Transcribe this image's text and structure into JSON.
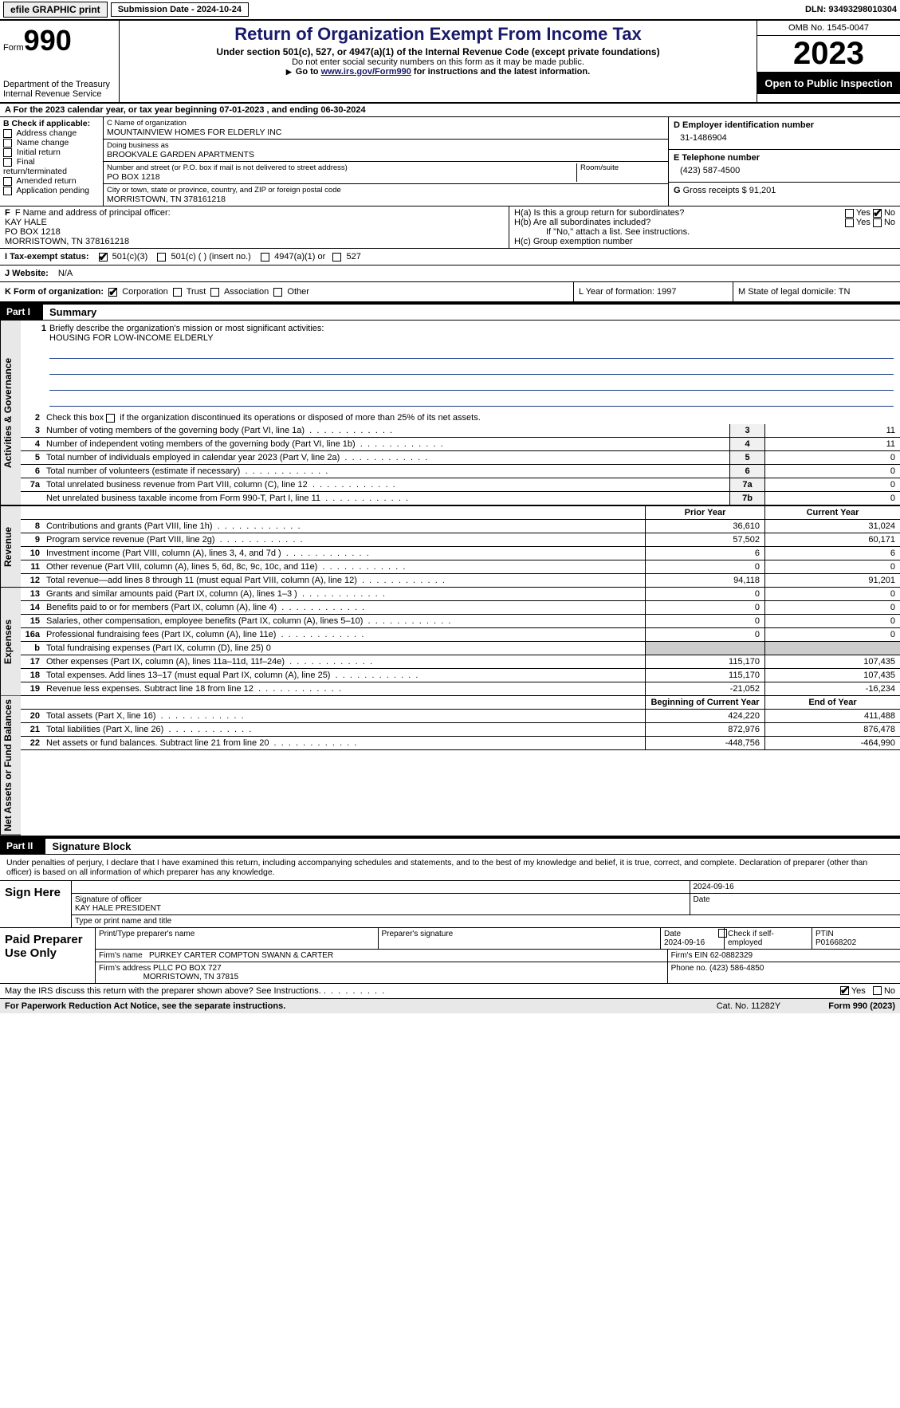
{
  "topbar": {
    "efile": "efile GRAPHIC print",
    "submission_label": "Submission Date - 2024-10-24",
    "dln_label": "DLN: 93493298010304"
  },
  "header": {
    "form_word": "Form",
    "form_num": "990",
    "dept": "Department of the Treasury",
    "irs": "Internal Revenue Service",
    "title": "Return of Organization Exempt From Income Tax",
    "sub": "Under section 501(c), 527, or 4947(a)(1) of the Internal Revenue Code (except private foundations)",
    "note1": "Do not enter social security numbers on this form as it may be made public.",
    "note2_pre": "Go to ",
    "note2_link": "www.irs.gov/Form990",
    "note2_post": " for instructions and the latest information.",
    "omb": "OMB No. 1545-0047",
    "year": "2023",
    "open": "Open to Public Inspection"
  },
  "line_a": "For the 2023 calendar year, or tax year beginning 07-01-2023    , and ending 06-30-2024",
  "box_b": {
    "title": "B Check if applicable:",
    "items": [
      "Address change",
      "Name change",
      "Initial return",
      "Final return/terminated",
      "Amended return",
      "Application pending"
    ]
  },
  "box_c": {
    "name_label": "C Name of organization",
    "name": "MOUNTAINVIEW HOMES FOR ELDERLY INC",
    "dba_label": "Doing business as",
    "dba": "BROOKVALE GARDEN APARTMENTS",
    "street_label": "Number and street (or P.O. box if mail is not delivered to street address)",
    "street": "PO BOX 1218",
    "room_label": "Room/suite",
    "city_label": "City or town, state or province, country, and ZIP or foreign postal code",
    "city": "MORRISTOWN, TN  378161218"
  },
  "box_d": {
    "label": "D Employer identification number",
    "value": "31-1486904"
  },
  "box_e": {
    "label": "E Telephone number",
    "value": "(423) 587-4500"
  },
  "box_g": {
    "label": "G",
    "text": "Gross receipts $ 91,201"
  },
  "box_f": {
    "label": "F  Name and address of principal officer:",
    "l1": "KAY HALE",
    "l2": "PO BOX 1218",
    "l3": "MORRISTOWN, TN  378161218"
  },
  "box_h": {
    "a": "H(a)  Is this a group return for subordinates?",
    "b": "H(b)  Are all subordinates included?",
    "b_note": "If \"No,\" attach a list. See instructions.",
    "c": "H(c)  Group exemption number",
    "yes": "Yes",
    "no": "No"
  },
  "row_i": {
    "label": "I   Tax-exempt status:",
    "o1": "501(c)(3)",
    "o2": "501(c) (  ) (insert no.)",
    "o3": "4947(a)(1) or",
    "o4": "527"
  },
  "row_j": {
    "label": "J   Website:",
    "value": "N/A"
  },
  "row_k": {
    "label": "K Form of organization:",
    "o1": "Corporation",
    "o2": "Trust",
    "o3": "Association",
    "o4": "Other",
    "l_label": "L Year of formation: 1997",
    "m_label": "M State of legal domicile: TN"
  },
  "part1": {
    "tag": "Part I",
    "title": "Summary"
  },
  "sidebars": {
    "gov": "Activities & Governance",
    "rev": "Revenue",
    "exp": "Expenses",
    "net": "Net Assets or Fund Balances"
  },
  "mission": {
    "num": "1",
    "label": "Briefly describe the organization's mission or most significant activities:",
    "text": "HOUSING FOR LOW-INCOME ELDERLY"
  },
  "gov_lines": [
    {
      "n": "2",
      "d": "Check this box      if the organization discontinued its operations or disposed of more than 25% of its net assets."
    },
    {
      "n": "3",
      "d": "Number of voting members of the governing body (Part VI, line 1a)",
      "c": "3",
      "v": "11"
    },
    {
      "n": "4",
      "d": "Number of independent voting members of the governing body (Part VI, line 1b)",
      "c": "4",
      "v": "11"
    },
    {
      "n": "5",
      "d": "Total number of individuals employed in calendar year 2023 (Part V, line 2a)",
      "c": "5",
      "v": "0"
    },
    {
      "n": "6",
      "d": "Total number of volunteers (estimate if necessary)",
      "c": "6",
      "v": "0"
    },
    {
      "n": "7a",
      "d": "Total unrelated business revenue from Part VIII, column (C), line 12",
      "c": "7a",
      "v": "0"
    },
    {
      "n": "",
      "d": "Net unrelated business taxable income from Form 990-T, Part I, line 11",
      "c": "7b",
      "v": "0"
    }
  ],
  "col_headers": {
    "prior": "Prior Year",
    "current": "Current Year",
    "boy": "Beginning of Current Year",
    "eoy": "End of Year"
  },
  "rev_lines": [
    {
      "n": "8",
      "d": "Contributions and grants (Part VIII, line 1h)",
      "p": "36,610",
      "c": "31,024"
    },
    {
      "n": "9",
      "d": "Program service revenue (Part VIII, line 2g)",
      "p": "57,502",
      "c": "60,171"
    },
    {
      "n": "10",
      "d": "Investment income (Part VIII, column (A), lines 3, 4, and 7d )",
      "p": "6",
      "c": "6"
    },
    {
      "n": "11",
      "d": "Other revenue (Part VIII, column (A), lines 5, 6d, 8c, 9c, 10c, and 11e)",
      "p": "0",
      "c": "0"
    },
    {
      "n": "12",
      "d": "Total revenue—add lines 8 through 11 (must equal Part VIII, column (A), line 12)",
      "p": "94,118",
      "c": "91,201"
    }
  ],
  "exp_lines": [
    {
      "n": "13",
      "d": "Grants and similar amounts paid (Part IX, column (A), lines 1–3 )",
      "p": "0",
      "c": "0"
    },
    {
      "n": "14",
      "d": "Benefits paid to or for members (Part IX, column (A), line 4)",
      "p": "0",
      "c": "0"
    },
    {
      "n": "15",
      "d": "Salaries, other compensation, employee benefits (Part IX, column (A), lines 5–10)",
      "p": "0",
      "c": "0"
    },
    {
      "n": "16a",
      "d": "Professional fundraising fees (Part IX, column (A), line 11e)",
      "p": "0",
      "c": "0"
    },
    {
      "n": "b",
      "d": "Total fundraising expenses (Part IX, column (D), line 25) 0",
      "shade": true
    },
    {
      "n": "17",
      "d": "Other expenses (Part IX, column (A), lines 11a–11d, 11f–24e)",
      "p": "115,170",
      "c": "107,435"
    },
    {
      "n": "18",
      "d": "Total expenses. Add lines 13–17 (must equal Part IX, column (A), line 25)",
      "p": "115,170",
      "c": "107,435"
    },
    {
      "n": "19",
      "d": "Revenue less expenses. Subtract line 18 from line 12",
      "p": "-21,052",
      "c": "-16,234"
    }
  ],
  "net_lines": [
    {
      "n": "20",
      "d": "Total assets (Part X, line 16)",
      "p": "424,220",
      "c": "411,488"
    },
    {
      "n": "21",
      "d": "Total liabilities (Part X, line 26)",
      "p": "872,976",
      "c": "876,478"
    },
    {
      "n": "22",
      "d": "Net assets or fund balances. Subtract line 21 from line 20",
      "p": "-448,756",
      "c": "-464,990"
    }
  ],
  "part2": {
    "tag": "Part II",
    "title": "Signature Block"
  },
  "sig_decl": "Under penalties of perjury, I declare that I have examined this return, including accompanying schedules and statements, and to the best of my knowledge and belief, it is true, correct, and complete. Declaration of preparer (other than officer) is based on all information of which preparer has any knowledge.",
  "sign_here": {
    "label": "Sign Here",
    "sig_label": "Signature of officer",
    "name": "KAY HALE  PRESIDENT",
    "type_label": "Type or print name and title",
    "date_label": "Date",
    "date": "2024-09-16"
  },
  "preparer": {
    "label": "Paid Preparer Use Only",
    "print_label": "Print/Type preparer's name",
    "sig_label": "Preparer's signature",
    "date_label": "Date",
    "date": "2024-09-16",
    "check_label": "Check       if self-employed",
    "ptin_label": "PTIN",
    "ptin": "P01668202",
    "firm_name_label": "Firm's name",
    "firm_name": "PURKEY CARTER COMPTON SWANN & CARTER",
    "firm_ein_label": "Firm's EIN",
    "firm_ein": "62-0882329",
    "firm_addr_label": "Firm's address",
    "firm_addr1": "PLLC PO BOX 727",
    "firm_addr2": "MORRISTOWN, TN  37815",
    "phone_label": "Phone no.",
    "phone": "(423) 586-4850"
  },
  "discuss": {
    "text": "May the IRS discuss this return with the preparer shown above? See Instructions.",
    "yes": "Yes",
    "no": "No"
  },
  "footer": {
    "paperwork": "For Paperwork Reduction Act Notice, see the separate instructions.",
    "cat": "Cat. No. 11282Y",
    "form": "Form 990 (2023)"
  }
}
